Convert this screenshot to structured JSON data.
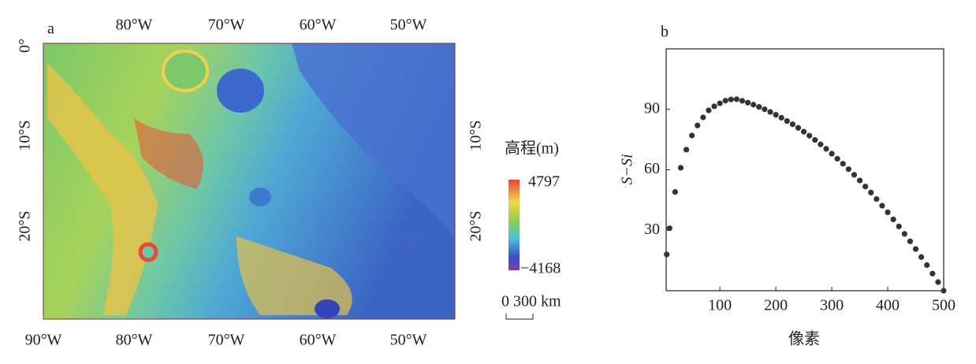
{
  "map": {
    "panel_label": "a",
    "top_ticks": [
      "80°W",
      "70°W",
      "60°W",
      "50°W"
    ],
    "bottom_ticks": [
      "90°W",
      "80°W",
      "70°W",
      "60°W",
      "50°W"
    ],
    "left_ticks": [
      "0°",
      "10°S",
      "20°S"
    ],
    "right_ticks": [
      "10°S",
      "20°S"
    ],
    "legend_title": "高程(m)",
    "legend_max": "4797",
    "legend_min": "−4168",
    "scale_label": "0 300 km"
  },
  "chart_data": {
    "type": "scatter",
    "panel_label": "b",
    "x_label": "像素",
    "y_label": "S−Si",
    "color": "#333333",
    "x": [
      5,
      10,
      20,
      30,
      40,
      50,
      60,
      70,
      80,
      90,
      100,
      110,
      120,
      130,
      140,
      150,
      160,
      170,
      180,
      190,
      200,
      210,
      220,
      230,
      240,
      250,
      260,
      270,
      280,
      290,
      300,
      310,
      320,
      330,
      340,
      350,
      360,
      370,
      380,
      390,
      400,
      410,
      420,
      430,
      440,
      450,
      460,
      470,
      480,
      490,
      500
    ],
    "y": [
      18,
      31,
      49,
      61,
      70,
      77,
      82,
      86,
      89.5,
      91.5,
      93,
      94.3,
      94.9,
      95,
      94.2,
      93.3,
      92.3,
      91.2,
      90,
      88.7,
      87.3,
      85.8,
      84.2,
      82.6,
      80.8,
      78.9,
      76.9,
      74.8,
      72.6,
      70.4,
      68,
      65.5,
      63,
      60.3,
      57.5,
      54.7,
      51.7,
      48.7,
      45.5,
      42.2,
      38.9,
      35.4,
      31.9,
      28.2,
      24.5,
      20.7,
      16.7,
      12.7,
      8.5,
      4.3,
      0
    ],
    "xlim": [
      4,
      500
    ],
    "ylim": [
      0,
      120
    ],
    "xticks": [
      100,
      200,
      300,
      400,
      500
    ],
    "yticks": [
      30,
      60,
      90
    ]
  }
}
